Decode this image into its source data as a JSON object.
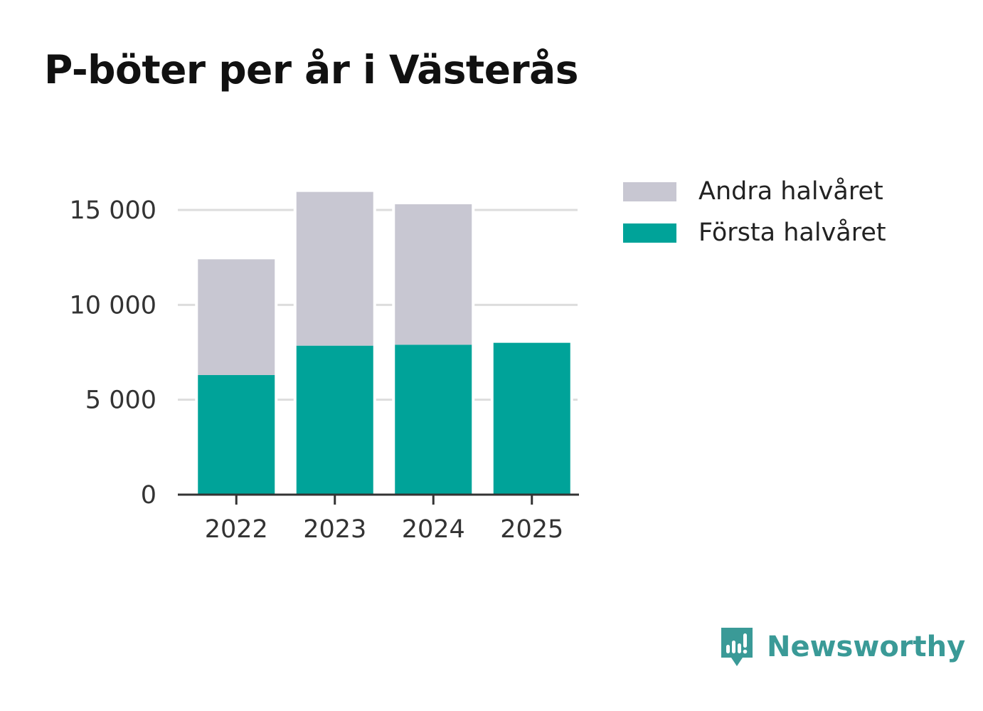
{
  "title": "P-böter per år i Västerås",
  "legend": [
    {
      "label": "Andra halvåret",
      "color": "#c8c7d2"
    },
    {
      "label": "Första halvåret",
      "color": "#00a399"
    }
  ],
  "brand": {
    "name": "Newsworthy",
    "icon": "newsworthy-logo-icon",
    "color": "#3a9a97"
  },
  "chart_data": {
    "type": "bar",
    "stacked": true,
    "categories": [
      "2022",
      "2023",
      "2024",
      "2025"
    ],
    "series": [
      {
        "name": "Första halvåret",
        "color": "#00a399",
        "values": [
          6300,
          7850,
          7900,
          8000
        ]
      },
      {
        "name": "Andra halvåret",
        "color": "#c8c7d2",
        "values": [
          6100,
          8100,
          7400,
          0
        ]
      }
    ],
    "yticks": [
      0,
      5000,
      10000,
      15000
    ],
    "ytick_labels": [
      "0",
      "5 000",
      "10 000",
      "15 000"
    ],
    "ylim": [
      0,
      16000
    ],
    "grid": true,
    "legend_position": "top-right"
  }
}
